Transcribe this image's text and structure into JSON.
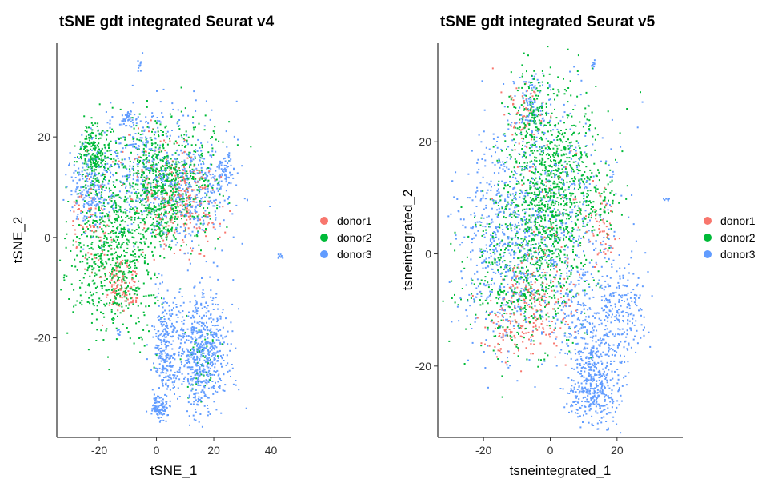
{
  "colors": {
    "donor1": "#F8766D",
    "donor2": "#00BA38",
    "donor3": "#619CFF"
  },
  "legend": [
    {
      "name": "donor1",
      "color": "#F8766D"
    },
    {
      "name": "donor2",
      "color": "#00BA38"
    },
    {
      "name": "donor3",
      "color": "#619CFF"
    }
  ],
  "chart_data": [
    {
      "type": "scatter",
      "title": "tSNE gdt integrated Seurat v4",
      "xlabel": "tSNE_1",
      "ylabel": "tSNE_2",
      "xlim": [
        -34,
        46
      ],
      "ylim": [
        -39,
        38
      ],
      "xticks": [
        -20,
        0,
        20,
        40
      ],
      "yticks": [
        -20,
        0,
        20
      ],
      "grid": false,
      "legend_position": "right",
      "series": [
        {
          "name": "donor1",
          "clusters": [
            {
              "cx": 10,
              "cy": 6,
              "sx": 6,
              "sy": 5,
              "n": 220
            },
            {
              "cx": -13,
              "cy": -10,
              "sx": 3,
              "sy": 2.5,
              "n": 110
            },
            {
              "cx": -23,
              "cy": 4,
              "sx": 4,
              "sy": 4,
              "n": 70
            },
            {
              "cx": 0,
              "cy": 12,
              "sx": 7,
              "sy": 6,
              "n": 60
            }
          ]
        },
        {
          "name": "donor2",
          "clusters": [
            {
              "cx": -22,
              "cy": 17,
              "sx": 3,
              "sy": 3,
              "n": 220
            },
            {
              "cx": -15,
              "cy": -3,
              "sx": 7,
              "sy": 8,
              "n": 700
            },
            {
              "cx": 3,
              "cy": 12,
              "sx": 9,
              "sy": 6,
              "n": 650
            },
            {
              "cx": 2,
              "cy": 4,
              "sx": 4,
              "sy": 3,
              "n": 150
            },
            {
              "cx": 16,
              "cy": -25,
              "sx": 3,
              "sy": 4,
              "n": 50
            }
          ]
        },
        {
          "name": "donor3",
          "clusters": [
            {
              "cx": -23,
              "cy": 10,
              "sx": 4,
              "sy": 4,
              "n": 220
            },
            {
              "cx": -7,
              "cy": 14,
              "sx": 7,
              "sy": 6,
              "n": 300
            },
            {
              "cx": 12,
              "cy": 10,
              "sx": 7,
              "sy": 6,
              "n": 400
            },
            {
              "cx": 16,
              "cy": -23,
              "sx": 4.5,
              "sy": 6,
              "n": 650
            },
            {
              "cx": 3,
              "cy": -22,
              "sx": 2,
              "sy": 6,
              "n": 260
            },
            {
              "cx": 1,
              "cy": -34,
              "sx": 1.5,
              "sy": 1,
              "n": 90
            },
            {
              "cx": -10,
              "cy": 24,
              "sx": 1.2,
              "sy": 1,
              "n": 40
            },
            {
              "cx": 24,
              "cy": 13,
              "sx": 2,
              "sy": 2,
              "n": 60
            },
            {
              "cx": -6,
              "cy": 34,
              "sx": 0.3,
              "sy": 0.6,
              "n": 10
            },
            {
              "cx": 43,
              "cy": -4,
              "sx": 0.5,
              "sy": 0.3,
              "n": 8
            },
            {
              "cx": -13,
              "cy": -19,
              "sx": 0.4,
              "sy": 0.4,
              "n": 8
            }
          ]
        }
      ]
    },
    {
      "type": "scatter",
      "title": "tSNE gdt integrated Seurat v5",
      "xlabel": "tsneintegrated_1",
      "ylabel": "tsneintegrated_2",
      "xlim": [
        -33,
        39
      ],
      "ylim": [
        -32,
        37
      ],
      "xticks": [
        -20,
        0,
        20
      ],
      "yticks": [
        -20,
        0,
        20
      ],
      "grid": false,
      "legend_position": "right",
      "series": [
        {
          "name": "donor1",
          "clusters": [
            {
              "cx": -6,
              "cy": -10,
              "sx": 6,
              "sy": 4,
              "n": 200
            },
            {
              "cx": -8,
              "cy": 25,
              "sx": 3,
              "sy": 3,
              "n": 60
            },
            {
              "cx": 16,
              "cy": 4,
              "sx": 2,
              "sy": 3,
              "n": 50
            },
            {
              "cx": -14,
              "cy": -14,
              "sx": 2,
              "sy": 2,
              "n": 40
            },
            {
              "cx": 0,
              "cy": 5,
              "sx": 8,
              "sy": 8,
              "n": 60
            }
          ]
        },
        {
          "name": "donor2",
          "clusters": [
            {
              "cx": 0,
              "cy": 12,
              "sx": 7,
              "sy": 8,
              "n": 900
            },
            {
              "cx": -8,
              "cy": -4,
              "sx": 8,
              "sy": 7,
              "n": 500
            },
            {
              "cx": -6,
              "cy": 26,
              "sx": 3,
              "sy": 3,
              "n": 120
            },
            {
              "cx": 15,
              "cy": 10,
              "sx": 3,
              "sy": 3,
              "n": 60
            }
          ]
        },
        {
          "name": "donor3",
          "clusters": [
            {
              "cx": -14,
              "cy": 2,
              "sx": 7,
              "sy": 9,
              "n": 600
            },
            {
              "cx": 2,
              "cy": 8,
              "sx": 9,
              "sy": 10,
              "n": 400
            },
            {
              "cx": 13,
              "cy": -23,
              "sx": 4,
              "sy": 4,
              "n": 450
            },
            {
              "cx": 20,
              "cy": -10,
              "sx": 4,
              "sy": 5,
              "n": 250
            },
            {
              "cx": 8,
              "cy": -10,
              "sx": 4,
              "sy": 4,
              "n": 150
            },
            {
              "cx": -6,
              "cy": 26,
              "sx": 3,
              "sy": 3,
              "n": 100
            },
            {
              "cx": 13,
              "cy": 34,
              "sx": 0.3,
              "sy": 0.5,
              "n": 10
            },
            {
              "cx": 35,
              "cy": 10,
              "sx": 0.5,
              "sy": 0.3,
              "n": 8
            }
          ]
        }
      ]
    }
  ]
}
